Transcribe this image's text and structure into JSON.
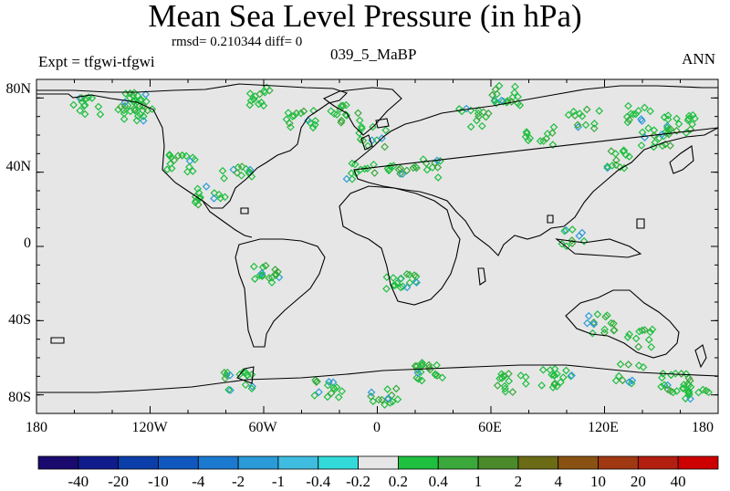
{
  "title": "Mean Sea Level Pressure (in hPa)",
  "rmsd_text": "rmsd= 0.210344 diff= 0",
  "expt_text": "Expt = tfgwi-tfgwi",
  "subtitle": "039_5_MaBP",
  "season": "ANN",
  "lat_labels": [
    "80N",
    "40N",
    "0",
    "40S",
    "80S"
  ],
  "lon_labels": [
    "180",
    "120W",
    "60W",
    "0",
    "60E",
    "120E",
    "180"
  ],
  "colorbar": {
    "labels": [
      "-40",
      "-20",
      "-10",
      "-4",
      "-2",
      "-1",
      "-0.4",
      "-0.2",
      "0.2",
      "0.4",
      "1",
      "2",
      "4",
      "10",
      "20",
      "40"
    ],
    "colors": [
      "#1a0a6e",
      "#101b8c",
      "#0b3ea8",
      "#1058bf",
      "#1b79cf",
      "#2a9ad8",
      "#3fbde0",
      "#33dada",
      "#e6e6e6",
      "#1fbf3f",
      "#3aa83a",
      "#4a8a2a",
      "#6b6b16",
      "#8a5212",
      "#a03812",
      "#b21e10",
      "#cc0000"
    ]
  },
  "map": {
    "background_color": "#e6e6e6",
    "land_outline_color": "#000000",
    "lon_range": [
      -180,
      180
    ],
    "lat_range": [
      -90,
      90
    ]
  }
}
